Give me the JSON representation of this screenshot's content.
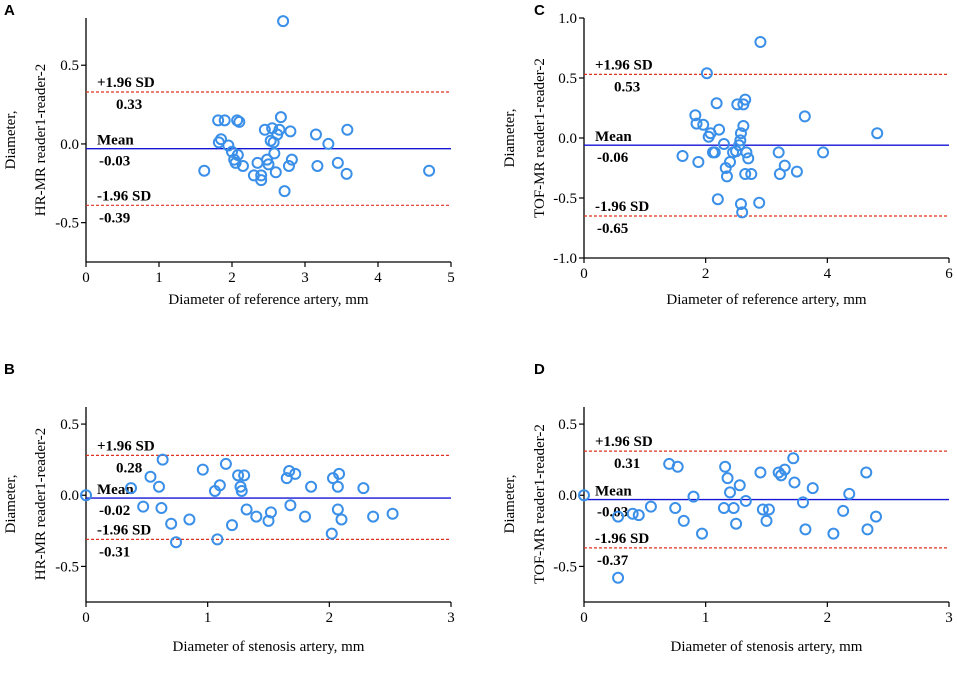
{
  "colors": {
    "mean_line": "#1515d6",
    "sd_line": "#e0301e",
    "point": "#3a8fe8",
    "axis": "#000000"
  },
  "chart_data": [
    {
      "panel": "A",
      "type": "scatter",
      "xlabel": "Diameter of  reference artery, mm",
      "ylabel_line1": "Diameter,",
      "ylabel_line2": "HR-MR reader1-reader-2",
      "xlim": [
        0,
        5
      ],
      "ylim": [
        -0.75,
        0.8
      ],
      "xticks": [
        0,
        1,
        2,
        3,
        4,
        5
      ],
      "xtick_labels": [
        "0",
        "1",
        "2",
        "3",
        "4",
        "5"
      ],
      "yticks": [
        0.5,
        0,
        -0.5
      ],
      "ytick_labels": [
        "0.5",
        "0.0",
        "-0.5"
      ],
      "mean": -0.03,
      "upper": 0.33,
      "lower": -0.39,
      "mean_label": "Mean",
      "mean_value": "-0.03",
      "upper_label": "+1.96 SD",
      "upper_value": "0.33",
      "lower_label": "-1.96 SD",
      "lower_value": "-0.39",
      "points": [
        [
          1.62,
          -0.17
        ],
        [
          1.81,
          0.15
        ],
        [
          1.85,
          0.03
        ],
        [
          1.82,
          0.01
        ],
        [
          1.9,
          0.15
        ],
        [
          1.95,
          -0.01
        ],
        [
          2.0,
          -0.05
        ],
        [
          2.05,
          -0.12
        ],
        [
          2.07,
          0.15
        ],
        [
          2.1,
          0.14
        ],
        [
          2.03,
          -0.1
        ],
        [
          2.08,
          -0.07
        ],
        [
          2.15,
          -0.14
        ],
        [
          2.3,
          -0.2
        ],
        [
          2.35,
          -0.12
        ],
        [
          2.4,
          -0.2
        ],
        [
          2.4,
          -0.23
        ],
        [
          2.45,
          0.09
        ],
        [
          2.48,
          -0.1
        ],
        [
          2.5,
          -0.13
        ],
        [
          2.53,
          0.02
        ],
        [
          2.55,
          0.1
        ],
        [
          2.57,
          0.01
        ],
        [
          2.58,
          -0.06
        ],
        [
          2.6,
          -0.18
        ],
        [
          2.62,
          0.06
        ],
        [
          2.65,
          0.09
        ],
        [
          2.67,
          0.17
        ],
        [
          2.7,
          0.78
        ],
        [
          2.72,
          -0.3
        ],
        [
          2.78,
          -0.14
        ],
        [
          2.8,
          0.08
        ],
        [
          2.82,
          -0.1
        ],
        [
          3.15,
          0.06
        ],
        [
          3.17,
          -0.14
        ],
        [
          3.32,
          0.0
        ],
        [
          3.45,
          -0.12
        ],
        [
          3.57,
          -0.19
        ],
        [
          3.58,
          0.09
        ],
        [
          4.7,
          -0.17
        ]
      ]
    },
    {
      "panel": "B",
      "type": "scatter",
      "xlabel": "Diameter of stenosis artery, mm",
      "ylabel_line1": "Diameter,",
      "ylabel_line2": "HR-MR reader1-reader-2",
      "xlim": [
        0,
        3
      ],
      "ylim": [
        -0.75,
        0.62
      ],
      "xticks": [
        0,
        1,
        2,
        3
      ],
      "xtick_labels": [
        "0",
        "1",
        "2",
        "3"
      ],
      "yticks": [
        0.5,
        0,
        -0.5
      ],
      "ytick_labels": [
        "0.5",
        "0.0",
        "-0.5"
      ],
      "mean": -0.02,
      "upper": 0.28,
      "lower": -0.31,
      "mean_label": "Mean",
      "mean_value": "-0.02",
      "upper_label": "+1.96 SD",
      "upper_value": "0.28",
      "lower_label": "-1.96 SD",
      "lower_value": "-0.31",
      "points": [
        [
          0.0,
          0.0
        ],
        [
          0.37,
          0.05
        ],
        [
          0.47,
          -0.08
        ],
        [
          0.53,
          0.13
        ],
        [
          0.6,
          0.06
        ],
        [
          0.62,
          -0.09
        ],
        [
          0.63,
          0.25
        ],
        [
          0.7,
          -0.2
        ],
        [
          0.74,
          -0.33
        ],
        [
          0.85,
          -0.17
        ],
        [
          0.96,
          0.18
        ],
        [
          1.06,
          0.03
        ],
        [
          1.08,
          -0.31
        ],
        [
          1.1,
          0.07
        ],
        [
          1.15,
          0.22
        ],
        [
          1.2,
          -0.21
        ],
        [
          1.25,
          0.14
        ],
        [
          1.27,
          0.06
        ],
        [
          1.28,
          0.03
        ],
        [
          1.3,
          0.14
        ],
        [
          1.32,
          -0.1
        ],
        [
          1.4,
          -0.15
        ],
        [
          1.5,
          -0.18
        ],
        [
          1.52,
          -0.12
        ],
        [
          1.65,
          0.12
        ],
        [
          1.67,
          0.17
        ],
        [
          1.68,
          -0.07
        ],
        [
          1.72,
          0.15
        ],
        [
          1.8,
          -0.15
        ],
        [
          1.85,
          0.06
        ],
        [
          2.02,
          -0.27
        ],
        [
          2.03,
          0.12
        ],
        [
          2.07,
          0.06
        ],
        [
          2.07,
          -0.1
        ],
        [
          2.08,
          0.15
        ],
        [
          2.1,
          -0.17
        ],
        [
          2.28,
          0.05
        ],
        [
          2.36,
          -0.15
        ],
        [
          2.52,
          -0.13
        ]
      ]
    },
    {
      "panel": "C",
      "type": "scatter",
      "xlabel": "Diameter of  reference artery, mm",
      "ylabel_line1": "Diameter,",
      "ylabel_line2": "TOF-MR reader1-reader-2",
      "xlim": [
        0,
        6
      ],
      "ylim": [
        -1.0,
        1.0
      ],
      "xticks": [
        0,
        2,
        4,
        6
      ],
      "xtick_labels": [
        "0",
        "2",
        "4",
        "6"
      ],
      "yticks": [
        1.0,
        0.5,
        0,
        -0.5,
        -1.0
      ],
      "ytick_labels": [
        "1.0",
        "0.5",
        "0.0",
        "-0.5",
        "-1.0"
      ],
      "mean": -0.06,
      "upper": 0.53,
      "lower": -0.65,
      "mean_label": "Mean",
      "mean_value": "-0.06",
      "upper_label": "+1.96 SD",
      "upper_value": "0.53",
      "lower_label": "-1.96 SD",
      "lower_value": "-0.65",
      "points": [
        [
          1.62,
          -0.15
        ],
        [
          1.83,
          0.19
        ],
        [
          1.85,
          0.12
        ],
        [
          1.88,
          -0.2
        ],
        [
          1.96,
          0.11
        ],
        [
          2.02,
          0.54
        ],
        [
          2.05,
          0.01
        ],
        [
          2.08,
          0.04
        ],
        [
          2.12,
          -0.12
        ],
        [
          2.15,
          -0.12
        ],
        [
          2.18,
          0.29
        ],
        [
          2.2,
          -0.51
        ],
        [
          2.22,
          0.07
        ],
        [
          2.3,
          -0.05
        ],
        [
          2.33,
          -0.25
        ],
        [
          2.35,
          -0.32
        ],
        [
          2.4,
          -0.2
        ],
        [
          2.45,
          -0.12
        ],
        [
          2.5,
          -0.11
        ],
        [
          2.52,
          0.28
        ],
        [
          2.55,
          -0.06
        ],
        [
          2.57,
          -0.02
        ],
        [
          2.58,
          0.04
        ],
        [
          2.58,
          -0.55
        ],
        [
          2.6,
          -0.62
        ],
        [
          2.62,
          0.1
        ],
        [
          2.62,
          0.28
        ],
        [
          2.65,
          0.32
        ],
        [
          2.65,
          -0.3
        ],
        [
          2.67,
          -0.12
        ],
        [
          2.7,
          -0.17
        ],
        [
          2.75,
          -0.3
        ],
        [
          2.88,
          -0.54
        ],
        [
          2.9,
          0.8
        ],
        [
          3.2,
          -0.12
        ],
        [
          3.22,
          -0.3
        ],
        [
          3.3,
          -0.23
        ],
        [
          3.5,
          -0.28
        ],
        [
          3.63,
          0.18
        ],
        [
          3.93,
          -0.12
        ],
        [
          4.82,
          0.04
        ]
      ]
    },
    {
      "panel": "D",
      "type": "scatter",
      "xlabel": "Diameter of stenosis artery, mm",
      "ylabel_line1": "Diameter,",
      "ylabel_line2": "TOF-MR reader1-reader-2",
      "xlim": [
        0,
        3
      ],
      "ylim": [
        -0.75,
        0.62
      ],
      "xticks": [
        0,
        1,
        2,
        3
      ],
      "xtick_labels": [
        "0",
        "1",
        "2",
        "3"
      ],
      "yticks": [
        0.5,
        0,
        -0.5
      ],
      "ytick_labels": [
        "0.5",
        "0.0",
        "-0.5"
      ],
      "mean": -0.03,
      "upper": 0.31,
      "lower": -0.37,
      "mean_label": "Mean",
      "mean_value": "-0.03",
      "upper_label": "+1.96 SD",
      "upper_value": "0.31",
      "lower_label": "-1.96 SD",
      "lower_value": "-0.37",
      "points": [
        [
          0.0,
          0.0
        ],
        [
          0.28,
          -0.15
        ],
        [
          0.28,
          -0.58
        ],
        [
          0.4,
          -0.13
        ],
        [
          0.45,
          -0.14
        ],
        [
          0.55,
          -0.08
        ],
        [
          0.7,
          0.22
        ],
        [
          0.75,
          -0.09
        ],
        [
          0.77,
          0.2
        ],
        [
          0.82,
          -0.18
        ],
        [
          0.9,
          -0.01
        ],
        [
          0.97,
          -0.27
        ],
        [
          1.15,
          -0.09
        ],
        [
          1.16,
          0.2
        ],
        [
          1.18,
          0.12
        ],
        [
          1.2,
          0.02
        ],
        [
          1.23,
          -0.09
        ],
        [
          1.25,
          -0.2
        ],
        [
          1.28,
          0.07
        ],
        [
          1.33,
          -0.04
        ],
        [
          1.45,
          0.16
        ],
        [
          1.47,
          -0.1
        ],
        [
          1.5,
          -0.18
        ],
        [
          1.52,
          -0.1
        ],
        [
          1.6,
          0.16
        ],
        [
          1.62,
          0.14
        ],
        [
          1.65,
          0.18
        ],
        [
          1.72,
          0.26
        ],
        [
          1.73,
          0.09
        ],
        [
          1.8,
          -0.05
        ],
        [
          1.82,
          -0.24
        ],
        [
          1.88,
          0.05
        ],
        [
          2.05,
          -0.27
        ],
        [
          2.13,
          -0.11
        ],
        [
          2.18,
          0.01
        ],
        [
          2.32,
          0.16
        ],
        [
          2.33,
          -0.24
        ],
        [
          2.4,
          -0.15
        ]
      ]
    }
  ]
}
